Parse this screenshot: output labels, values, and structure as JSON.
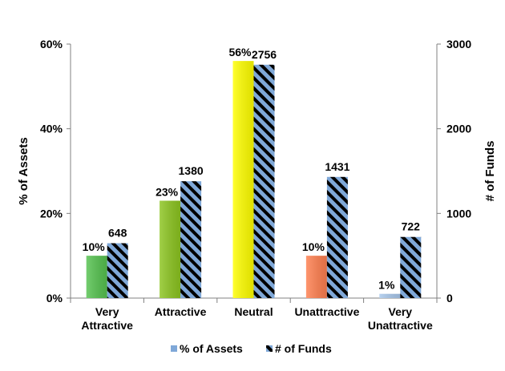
{
  "chart_data": {
    "type": "bar",
    "categories": [
      [
        "Very",
        "Attractive"
      ],
      [
        "Attractive"
      ],
      [
        "Neutral"
      ],
      [
        "Unattractive"
      ],
      [
        "Very",
        "Unattractive"
      ]
    ],
    "series": [
      {
        "name": "% of Assets",
        "axis": "left",
        "values": [
          10,
          23,
          56,
          10,
          1
        ],
        "labels": [
          "10%",
          "23%",
          "56%",
          "10%",
          "1%"
        ],
        "colors": [
          "#55c24f",
          "#8cc520",
          "#ffff00",
          "#ff7f4f",
          "#a9c8ec"
        ]
      },
      {
        "name": "# of Funds",
        "axis": "right",
        "values": [
          648,
          1380,
          2756,
          1431,
          722
        ],
        "labels": [
          "648",
          "1380",
          "2756",
          "1431",
          "722"
        ],
        "pattern": "diagonal-stripes",
        "colors": [
          "#7fa8d8",
          "#000000"
        ]
      }
    ],
    "y_left": {
      "label": "% of Assets",
      "range": [
        0,
        60
      ],
      "ticks": [
        "0%",
        "20%",
        "40%",
        "60%"
      ],
      "tick_values": [
        0,
        20,
        40,
        60
      ]
    },
    "y_right": {
      "label": "# of Funds",
      "range": [
        0,
        3000
      ],
      "ticks": [
        "0",
        "1000",
        "2000",
        "3000"
      ],
      "tick_values": [
        0,
        1000,
        2000,
        3000
      ]
    },
    "legend": {
      "position": "bottom"
    },
    "grid": false
  }
}
